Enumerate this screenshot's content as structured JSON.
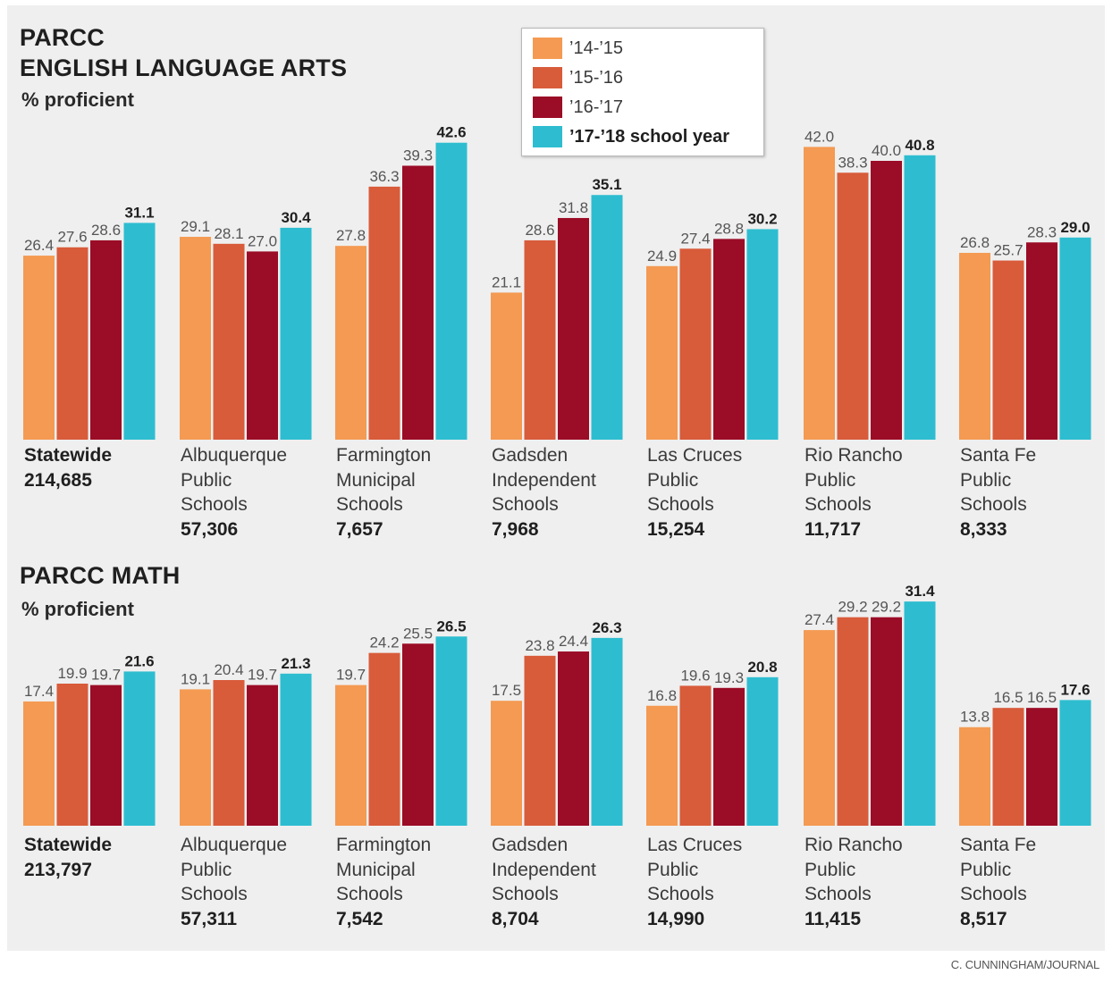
{
  "legend": [
    {
      "label": "’14-’15",
      "color": "#f49a52"
    },
    {
      "label": "’15-’16",
      "color": "#d85b3a"
    },
    {
      "label": "’16-’17",
      "color": "#9b0c26"
    },
    {
      "label": "’17-’18 school year",
      "color": "#2ebdd0"
    }
  ],
  "ela": {
    "title_line1": "PARCC",
    "title_line2": "ENGLISH LANGUAGE ARTS",
    "subtitle": "% proficient"
  },
  "math": {
    "title": "PARCC MATH",
    "subtitle": "% proficient"
  },
  "credit": "C. CUNNINGHAM/JOURNAL",
  "chart_data": [
    {
      "type": "bar",
      "title": "PARCC ENGLISH LANGUAGE ARTS",
      "ylabel": "% proficient",
      "ylim": [
        0,
        45
      ],
      "categories": [
        {
          "lines": [
            "Statewide"
          ],
          "n": "214,685"
        },
        {
          "lines": [
            "Albuquerque",
            "Public",
            "Schools"
          ],
          "n": "57,306"
        },
        {
          "lines": [
            "Farmington",
            "Municipal",
            "Schools"
          ],
          "n": "7,657"
        },
        {
          "lines": [
            "Gadsden",
            "Independent",
            "Schools"
          ],
          "n": "7,968"
        },
        {
          "lines": [
            "Las Cruces",
            "Public",
            "Schools"
          ],
          "n": "15,254"
        },
        {
          "lines": [
            "Rio Rancho",
            "Public",
            "Schools"
          ],
          "n": "11,717"
        },
        {
          "lines": [
            "Santa Fe",
            "Public",
            "Schools"
          ],
          "n": "8,333"
        }
      ],
      "series": [
        {
          "name": "’14-’15",
          "values": [
            "26.4",
            "29.1",
            "27.8",
            "21.1",
            "24.9",
            "42.0",
            "26.8"
          ]
        },
        {
          "name": "’15-’16",
          "values": [
            "27.6",
            "28.1",
            "36.3",
            "28.6",
            "27.4",
            "38.3",
            "25.7"
          ]
        },
        {
          "name": "’16-’17",
          "values": [
            "28.6",
            "27.0",
            "39.3",
            "31.8",
            "28.8",
            "40.0",
            "28.3"
          ]
        },
        {
          "name": "’17-’18 school year",
          "values": [
            "31.1",
            "30.4",
            "42.6",
            "35.1",
            "30.2",
            "40.8",
            "29.0"
          ]
        }
      ]
    },
    {
      "type": "bar",
      "title": "PARCC MATH",
      "ylabel": "% proficient",
      "ylim": [
        0,
        35
      ],
      "categories": [
        {
          "lines": [
            "Statewide"
          ],
          "n": "213,797"
        },
        {
          "lines": [
            "Albuquerque",
            "Public",
            "Schools"
          ],
          "n": "57,311"
        },
        {
          "lines": [
            "Farmington",
            "Municipal",
            "Schools"
          ],
          "n": "7,542"
        },
        {
          "lines": [
            "Gadsden",
            "Independent",
            "Schools"
          ],
          "n": "8,704"
        },
        {
          "lines": [
            "Las Cruces",
            "Public",
            "Schools"
          ],
          "n": "14,990"
        },
        {
          "lines": [
            "Rio Rancho",
            "Public",
            "Schools"
          ],
          "n": "11,415"
        },
        {
          "lines": [
            "Santa Fe",
            "Public",
            "Schools"
          ],
          "n": "8,517"
        }
      ],
      "series": [
        {
          "name": "’14-’15",
          "values": [
            "17.4",
            "19.1",
            "19.7",
            "17.5",
            "16.8",
            "27.4",
            "13.8"
          ]
        },
        {
          "name": "’15-’16",
          "values": [
            "19.9",
            "20.4",
            "24.2",
            "23.8",
            "19.6",
            "29.2",
            "16.5"
          ]
        },
        {
          "name": "’16-’17",
          "values": [
            "19.7",
            "19.7",
            "25.5",
            "24.4",
            "19.3",
            "29.2",
            "16.5"
          ]
        },
        {
          "name": "’17-’18 school year",
          "values": [
            "21.6",
            "21.3",
            "26.5",
            "26.3",
            "20.8",
            "31.4",
            "17.6"
          ]
        }
      ]
    }
  ]
}
